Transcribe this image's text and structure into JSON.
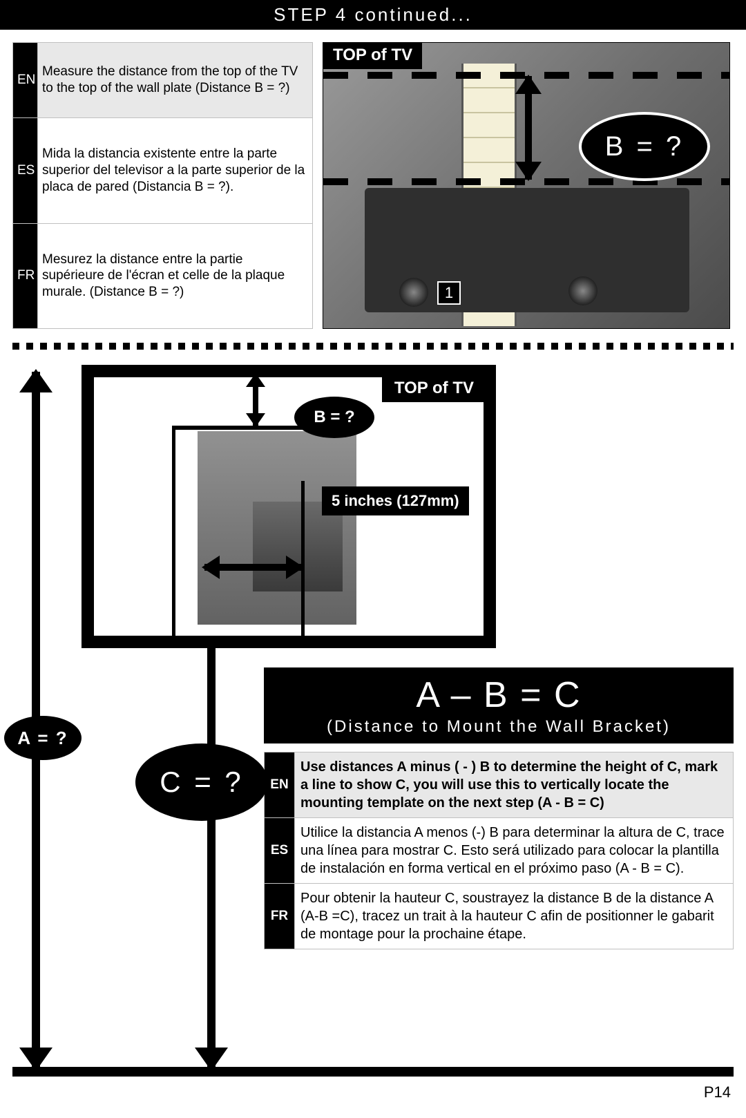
{
  "header": {
    "title": "STEP 4 continued..."
  },
  "table1": {
    "rows": [
      {
        "code": "EN",
        "text": "Measure the distance from the top of the TV to the top of the wall plate (Distance B = ?)"
      },
      {
        "code": "ES",
        "text": "Mida la distancia existente entre la parte superior del televisor a la parte superior de la placa de pared (Distancia B = ?)."
      },
      {
        "code": "FR",
        "text": "Mesurez la distance entre la partie supérieure de l'écran et celle de la plaque murale. (Distance B = ?)"
      }
    ]
  },
  "photo": {
    "top_label": "TOP of TV",
    "b_label": "B = ?",
    "callout_number": "1"
  },
  "diagram": {
    "tv_top_label": "TOP of TV",
    "b_label": "B = ?",
    "inches_label": "5 inches (127mm)",
    "a_label": "A = ?",
    "c_label": "C = ?"
  },
  "formula": {
    "main": "A – B = C",
    "sub": "(Distance to Mount the Wall Bracket)"
  },
  "table2": {
    "rows": [
      {
        "code": "EN",
        "text": "Use distances A minus ( - ) B to determine the height of C, mark a line to show C, you will use this to vertically locate the mounting template on the next step (A - B = C)"
      },
      {
        "code": "ES",
        "text": "Utilice la distancia A menos (-) B para determinar la altura de C, trace una línea para mostrar C. Esto será utilizado para colocar la plantilla de instalación en forma vertical en el próximo paso (A - B = C)."
      },
      {
        "code": "FR",
        "text": "Pour obtenir la hauteur C, soustrayez la distance B de la distance A (A-B =C), tracez un trait à la hauteur C afin de positionner le gabarit de montage pour la prochaine étape."
      }
    ]
  },
  "page_number": "P14",
  "colors": {
    "black": "#000000",
    "white": "#ffffff",
    "grey_bg": "#e8e8e8",
    "border": "#c0c0c0"
  }
}
